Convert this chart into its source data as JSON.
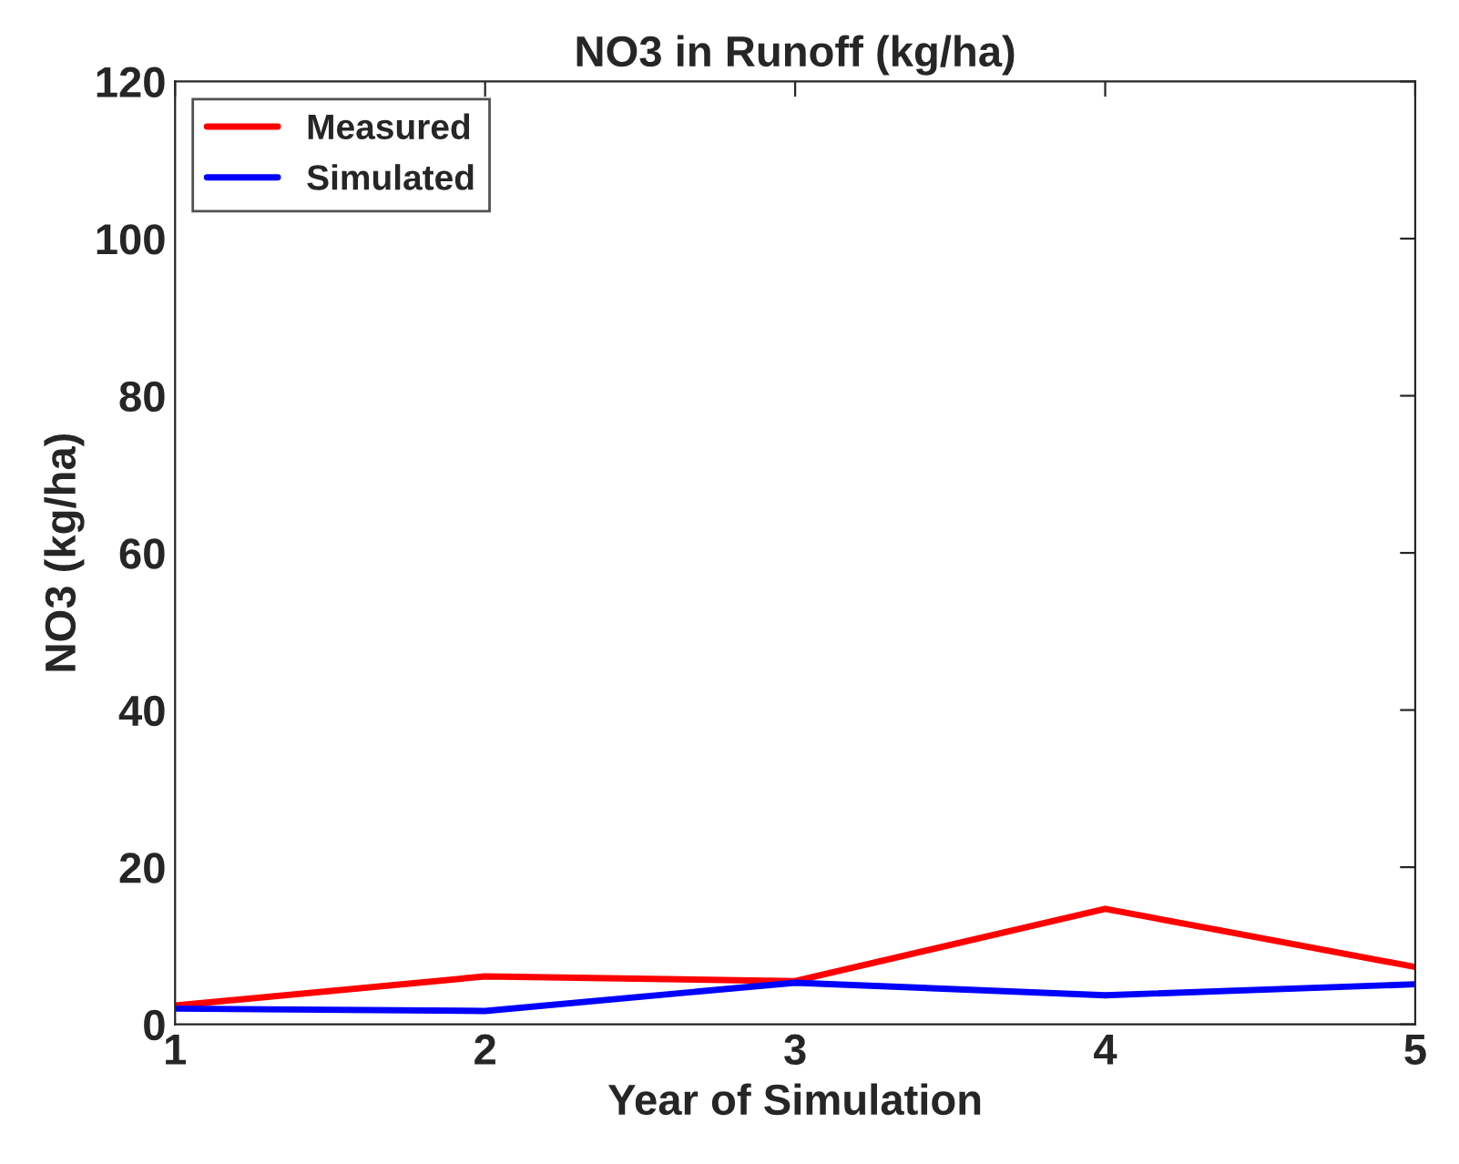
{
  "chart_data": {
    "type": "line",
    "title": "NO3 in Runoff (kg/ha)",
    "xlabel": "Year of Simulation",
    "ylabel": "NO3 (kg/ha)",
    "x": [
      1,
      2,
      3,
      4,
      5
    ],
    "series": [
      {
        "name": "Measured",
        "color": "#ff0000",
        "values": [
          2.4,
          6.1,
          5.5,
          14.7,
          7.3
        ]
      },
      {
        "name": "Simulated",
        "color": "#0000ff",
        "values": [
          2.0,
          1.7,
          5.3,
          3.7,
          5.1
        ]
      }
    ],
    "xlim": [
      1,
      5
    ],
    "xticks": [
      1,
      2,
      3,
      4,
      5
    ],
    "ylim": [
      0,
      120
    ],
    "yticks": [
      0,
      20,
      40,
      60,
      80,
      100,
      120
    ],
    "grid": false,
    "legend": "top left",
    "marker": "none",
    "line_style": "solid"
  }
}
